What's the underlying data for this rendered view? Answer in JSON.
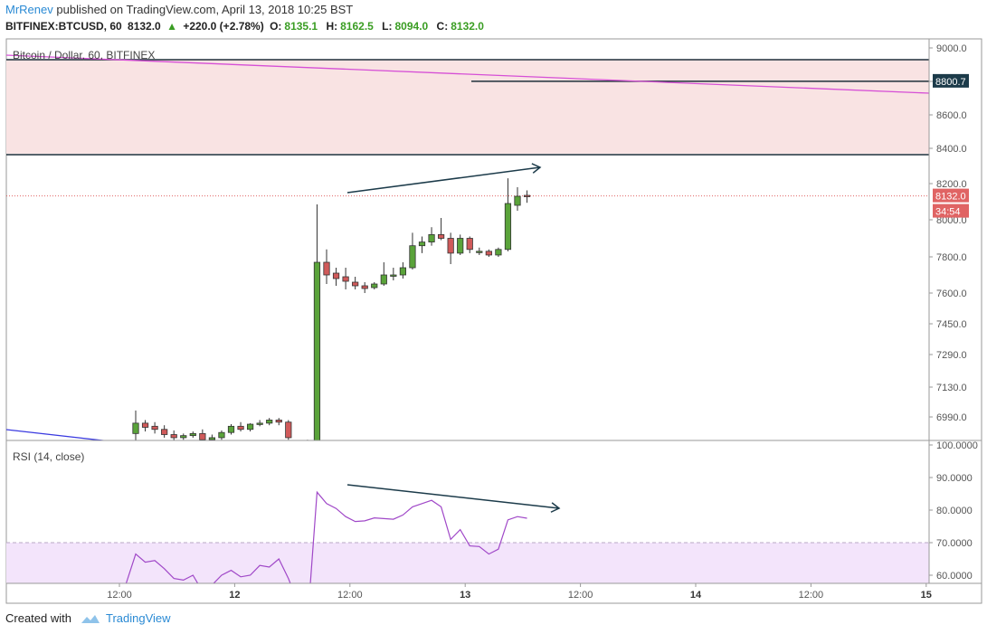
{
  "header": {
    "username": "MrRenev",
    "published_text": "published on TradingView.com, April 13, 2018 10:25 BST",
    "symbol_line": "BITFINEX:BTCUSD, 60",
    "last_price": "8132.0",
    "change_arrow": "▲",
    "change": "+220.0 (+2.78%)",
    "open_label": "O:",
    "open": "8135.1",
    "high_label": "H:",
    "high": "8162.5",
    "low_label": "L:",
    "low": "8094.0",
    "close_label": "C:",
    "close": "8132.0"
  },
  "footer": {
    "created_with": "Created with",
    "brand": "TradingView"
  },
  "colors": {
    "up": "#5aa33a",
    "down": "#d05a5a",
    "zone_fill": "#f9e3e3",
    "trendline_magenta": "#d64fd6",
    "trendline_blue": "#3b3be0",
    "arrow": "#1c3b4a",
    "rsi_line": "#a048c8",
    "rsi_band": "#f3e4fb",
    "price_badge": "#e06464",
    "level_badge": "#1c3b4a"
  },
  "chart_data": [
    {
      "type": "candlestick",
      "title": "Bitcoin / Dollar, 60, BITFINEX",
      "y_ticks": [
        "9000.0",
        "8800.0",
        "8600.0",
        "8400.0",
        "8200.0",
        "8000.0",
        "7800.0",
        "7600.0",
        "7450.0",
        "7290.0",
        "7130.0",
        "6990.0"
      ],
      "x_ticks": [
        "12:00",
        "12",
        "12:00",
        "13",
        "12:00",
        "14",
        "12:00",
        "15"
      ],
      "current_price_label": "8132.0",
      "countdown_label": "34:54",
      "level_label": "8800.7",
      "resistance_zone": [
        8370,
        9000
      ],
      "candles_ohlc": [
        [
          6910,
          7020,
          6855,
          6960
        ],
        [
          6960,
          6975,
          6920,
          6940
        ],
        [
          6945,
          6965,
          6910,
          6930
        ],
        [
          6930,
          6950,
          6890,
          6905
        ],
        [
          6905,
          6925,
          6870,
          6890
        ],
        [
          6890,
          6910,
          6880,
          6900
        ],
        [
          6900,
          6920,
          6890,
          6910
        ],
        [
          6910,
          6930,
          6870,
          6880
        ],
        [
          6880,
          6905,
          6860,
          6890
        ],
        [
          6890,
          6925,
          6880,
          6915
        ],
        [
          6915,
          6955,
          6905,
          6945
        ],
        [
          6945,
          6965,
          6920,
          6930
        ],
        [
          6930,
          6960,
          6920,
          6955
        ],
        [
          6955,
          6975,
          6945,
          6960
        ],
        [
          6960,
          6985,
          6950,
          6975
        ],
        [
          6975,
          6985,
          6950,
          6965
        ],
        [
          6965,
          6975,
          6880,
          6890
        ],
        [
          6840,
          6860,
          6800,
          6820
        ],
        [
          6870,
          6880,
          6790,
          6840
        ],
        [
          6870,
          8085,
          6860,
          7770
        ],
        [
          7770,
          7840,
          7650,
          7700
        ],
        [
          7710,
          7740,
          7640,
          7680
        ],
        [
          7690,
          7740,
          7620,
          7665
        ],
        [
          7660,
          7690,
          7620,
          7640
        ],
        [
          7640,
          7660,
          7600,
          7625
        ],
        [
          7630,
          7660,
          7620,
          7650
        ],
        [
          7650,
          7770,
          7640,
          7700
        ],
        [
          7700,
          7740,
          7670,
          7700
        ],
        [
          7700,
          7770,
          7680,
          7740
        ],
        [
          7740,
          7930,
          7730,
          7860
        ],
        [
          7860,
          7910,
          7820,
          7880
        ],
        [
          7880,
          7960,
          7860,
          7920
        ],
        [
          7920,
          8010,
          7890,
          7900
        ],
        [
          7900,
          7930,
          7760,
          7820
        ],
        [
          7820,
          7920,
          7810,
          7900
        ],
        [
          7900,
          7910,
          7820,
          7840
        ],
        [
          7830,
          7850,
          7810,
          7830
        ],
        [
          7830,
          7840,
          7800,
          7810
        ],
        [
          7810,
          7850,
          7800,
          7840
        ],
        [
          7840,
          8230,
          7830,
          8090
        ],
        [
          8080,
          8180,
          8050,
          8130
        ],
        [
          8135,
          8162.5,
          8094,
          8132
        ]
      ],
      "candle_x_index_start": 0
    },
    {
      "type": "line",
      "title": "RSI (14, close)",
      "y_ticks": [
        "100.0000",
        "90.0000",
        "80.0000",
        "70.0000",
        "60.0000"
      ],
      "overbought_band": [
        70,
        100
      ],
      "values": [
        [
          0,
          66.5
        ],
        [
          1,
          64
        ],
        [
          2,
          64.5
        ],
        [
          3,
          62
        ],
        [
          4,
          59
        ],
        [
          5,
          58.5
        ],
        [
          6,
          60
        ],
        [
          7,
          55
        ],
        [
          8,
          57
        ],
        [
          9,
          60
        ],
        [
          10,
          61.5
        ],
        [
          11,
          59.5
        ],
        [
          12,
          60
        ],
        [
          13,
          63
        ],
        [
          14,
          62.5
        ],
        [
          15,
          65
        ],
        [
          16,
          59
        ],
        [
          19,
          85.5
        ],
        [
          20,
          82
        ],
        [
          21,
          80.5
        ],
        [
          22,
          78
        ],
        [
          23,
          76.5
        ],
        [
          24,
          76.7
        ],
        [
          25,
          77.6
        ],
        [
          26,
          77.4
        ],
        [
          27,
          77.2
        ],
        [
          28,
          78.5
        ],
        [
          29,
          81
        ],
        [
          30,
          82
        ],
        [
          31,
          83
        ],
        [
          32,
          81
        ],
        [
          33,
          71
        ],
        [
          34,
          74
        ],
        [
          35,
          69
        ],
        [
          36,
          68.8
        ],
        [
          37,
          66.5
        ],
        [
          38,
          68
        ],
        [
          39,
          77
        ],
        [
          40,
          78
        ],
        [
          41,
          77.5
        ]
      ]
    }
  ]
}
